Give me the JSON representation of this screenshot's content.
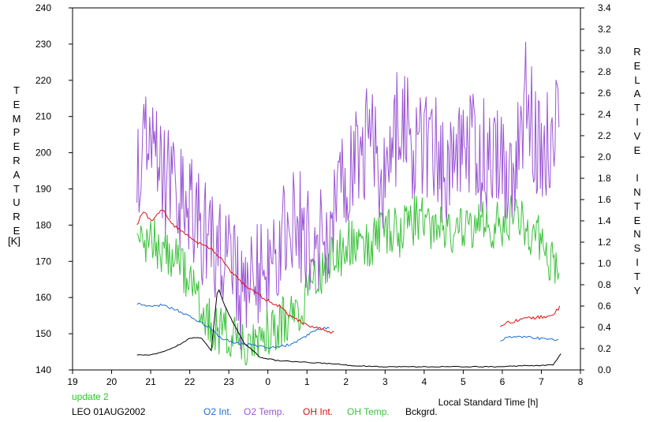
{
  "chart_data": {
    "type": "line",
    "xlabel": "Local Standard Time [h]",
    "x_ticks": [
      "19",
      "20",
      "21",
      "22",
      "23",
      "0",
      "1",
      "2",
      "3",
      "4",
      "5",
      "6",
      "7",
      "8"
    ],
    "xlim": [
      19,
      32
    ],
    "left_axis": {
      "label": "TEMPERATURE",
      "unit": "[K]",
      "ylim": [
        140,
        240
      ],
      "ticks": [
        "140",
        "150",
        "160",
        "170",
        "180",
        "190",
        "200",
        "210",
        "220",
        "230",
        "240"
      ]
    },
    "right_axis": {
      "label": "RELATIVE INTENSITY",
      "ylim": [
        0.0,
        3.4
      ],
      "ticks": [
        "0.0",
        "0.2",
        "0.4",
        "0.6",
        "0.8",
        "1.0",
        "1.2",
        "1.4",
        "1.6",
        "1.8",
        "2.0",
        "2.2",
        "2.4",
        "2.6",
        "2.8",
        "3.0",
        "3.2",
        "3.4"
      ]
    },
    "grid": false,
    "series": [
      {
        "name": "O2 Int.",
        "color": "#1e6fd0",
        "axis": "right",
        "x": [
          20.65,
          21.0,
          21.3,
          21.6,
          21.9,
          22.2,
          22.5,
          22.8,
          23.1,
          23.4,
          23.7,
          24.0,
          24.3,
          24.6,
          24.9,
          25.2,
          25.6
        ],
        "y": [
          0.62,
          0.6,
          0.61,
          0.57,
          0.52,
          0.46,
          0.4,
          0.3,
          0.26,
          0.24,
          0.23,
          0.21,
          0.22,
          0.24,
          0.3,
          0.37,
          0.4
        ]
      },
      {
        "name": "O2 Int.",
        "color": "#1e6fd0",
        "axis": "right",
        "x": [
          29.95,
          30.2,
          30.5,
          30.8,
          31.1,
          31.45
        ],
        "y": [
          0.28,
          0.31,
          0.31,
          0.3,
          0.29,
          0.28
        ]
      },
      {
        "name": "O2 Temp.",
        "color": "#9a55d4",
        "axis": "left",
        "x": [
          20.65,
          21.0,
          21.4,
          21.8,
          22.2,
          22.6,
          23.0,
          23.4,
          23.8,
          24.2,
          24.6,
          25.0,
          25.4,
          25.8,
          26.2,
          26.6,
          27.0,
          27.4,
          27.8,
          28.2,
          28.6,
          29.0,
          29.4,
          29.8,
          30.2,
          30.6,
          31.0,
          31.45
        ],
        "y": [
          195,
          203,
          192,
          186,
          180,
          175,
          168,
          158,
          170,
          175,
          180,
          178,
          175,
          190,
          198,
          205,
          192,
          212,
          200,
          204,
          192,
          208,
          198,
          202,
          192,
          215,
          198,
          210
        ]
      },
      {
        "name": "OH Int.",
        "color": "#dd1010",
        "axis": "right",
        "x": [
          20.65,
          20.8,
          21.0,
          21.3,
          21.6,
          21.9,
          22.2,
          22.5,
          22.8,
          23.1,
          23.4,
          23.7,
          24.0,
          24.3,
          24.6,
          24.9,
          25.2,
          25.6,
          25.7
        ],
        "y": [
          1.35,
          1.5,
          1.4,
          1.5,
          1.35,
          1.28,
          1.2,
          1.15,
          1.05,
          0.9,
          0.8,
          0.72,
          0.65,
          0.6,
          0.5,
          0.44,
          0.4,
          0.36,
          0.35
        ]
      },
      {
        "name": "OH Int.",
        "color": "#dd1010",
        "axis": "right",
        "x": [
          29.95,
          30.2,
          30.5,
          30.8,
          31.1,
          31.3,
          31.5
        ],
        "y": [
          0.42,
          0.45,
          0.48,
          0.49,
          0.5,
          0.52,
          0.6
        ]
      },
      {
        "name": "OH Temp.",
        "color": "#3cc23c",
        "axis": "left",
        "x": [
          20.65,
          21.0,
          21.4,
          21.8,
          22.2,
          22.6,
          23.0,
          23.4,
          23.8,
          24.2,
          24.6,
          25.0,
          25.4,
          25.8,
          26.2,
          26.6,
          27.0,
          27.4,
          27.8,
          28.2,
          28.6,
          29.0,
          29.4,
          29.8,
          30.2,
          30.6,
          31.0,
          31.45
        ],
        "y": [
          178,
          176,
          172,
          168,
          160,
          152,
          150,
          148,
          150,
          152,
          155,
          160,
          168,
          172,
          176,
          174,
          178,
          178,
          182,
          180,
          180,
          178,
          180,
          180,
          182,
          180,
          176,
          165
        ]
      },
      {
        "name": "Bckgrd.",
        "color": "#000000",
        "axis": "right",
        "x": [
          20.65,
          21.0,
          21.4,
          21.8,
          22.0,
          22.3,
          22.55,
          22.7,
          22.75,
          22.9,
          23.1,
          23.4,
          23.8,
          24.2,
          24.6,
          25.0,
          25.6,
          26.2,
          27.0,
          28.0,
          29.0,
          29.9,
          30.5,
          31.0,
          31.3,
          31.5
        ],
        "y": [
          0.14,
          0.14,
          0.18,
          0.25,
          0.3,
          0.3,
          0.18,
          0.72,
          0.75,
          0.6,
          0.45,
          0.25,
          0.12,
          0.09,
          0.08,
          0.07,
          0.06,
          0.04,
          0.03,
          0.03,
          0.03,
          0.03,
          0.04,
          0.04,
          0.05,
          0.15
        ]
      }
    ]
  },
  "footer": {
    "status": "update 2",
    "status_color": "#22cc22",
    "site": "LEO 01AUG2002"
  }
}
